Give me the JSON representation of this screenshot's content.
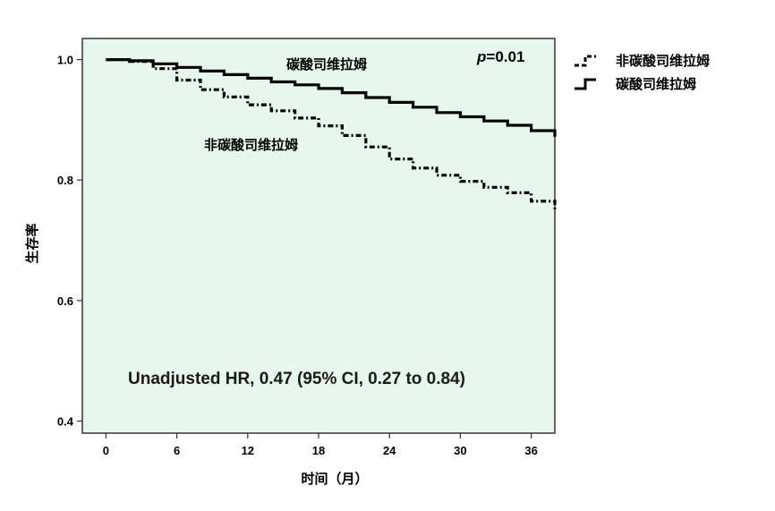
{
  "chart_data": {
    "type": "line",
    "subtype": "kaplan-meier",
    "xlabel": "时间（月）",
    "ylabel": "生存率",
    "x_ticks": [
      0,
      6,
      12,
      18,
      24,
      30,
      36
    ],
    "y_ticks": [
      "0.4",
      "0.6",
      "0.8",
      "1.0"
    ],
    "xlim": [
      -2,
      38
    ],
    "ylim": [
      0.38,
      1.035
    ],
    "grid": false,
    "background_color": "#e6f7ee",
    "legend_position": "outside-right",
    "series": [
      {
        "name": "非碳酸司维拉姆",
        "style": "dashed",
        "color": "#000000",
        "x": [
          0,
          2,
          4,
          6,
          8,
          10,
          12,
          14,
          16,
          18,
          20,
          22,
          24,
          26,
          28,
          30,
          32,
          34,
          36,
          38
        ],
        "y": [
          1.0,
          0.997,
          0.985,
          0.966,
          0.95,
          0.938,
          0.925,
          0.915,
          0.903,
          0.89,
          0.874,
          0.855,
          0.835,
          0.82,
          0.808,
          0.798,
          0.788,
          0.779,
          0.765,
          0.752
        ]
      },
      {
        "name": "碳酸司维拉姆",
        "style": "solid",
        "color": "#000000",
        "x": [
          0,
          2,
          4,
          6,
          8,
          10,
          12,
          14,
          16,
          18,
          20,
          22,
          24,
          26,
          28,
          30,
          32,
          34,
          36,
          38
        ],
        "y": [
          1.0,
          0.998,
          0.993,
          0.987,
          0.981,
          0.975,
          0.969,
          0.963,
          0.958,
          0.952,
          0.945,
          0.937,
          0.929,
          0.921,
          0.912,
          0.905,
          0.898,
          0.891,
          0.882,
          0.872
        ]
      }
    ],
    "annotations": {
      "solid_label": "碳酸司维拉姆",
      "dashed_label": "非碳酸司维拉姆",
      "p_prefix": "p",
      "p_value": "=0.01",
      "hr_text": "Unadjusted HR, 0.47 (95% CI, 0.27 to 0.84)"
    }
  }
}
